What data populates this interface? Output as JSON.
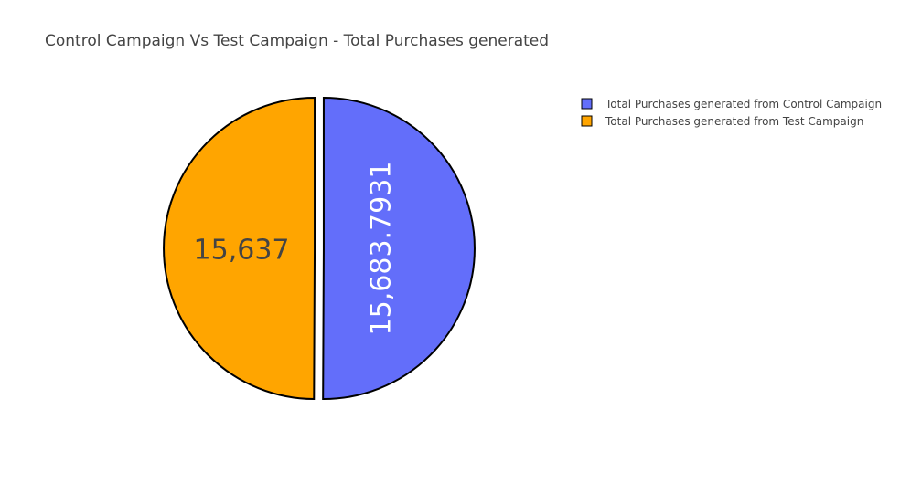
{
  "chart_data": {
    "type": "pie",
    "title": "Control Campaign Vs Test Campaign - Total Purchases generated",
    "labels": [
      "Total Purchases generated from Control Campaign",
      "Total Purchases generated from Test Campaign"
    ],
    "values": [
      15683.7931,
      15637
    ],
    "value_text": [
      "15,683.7931",
      "15,637"
    ],
    "colors": [
      "#636efa",
      "#ffa500"
    ],
    "text_colors": [
      "#ffffff",
      "#444444"
    ],
    "line_color": "#000000",
    "pull": [
      0.03,
      0.03
    ],
    "sort": false,
    "direction": "clockwise",
    "legend_position": "top-right"
  }
}
